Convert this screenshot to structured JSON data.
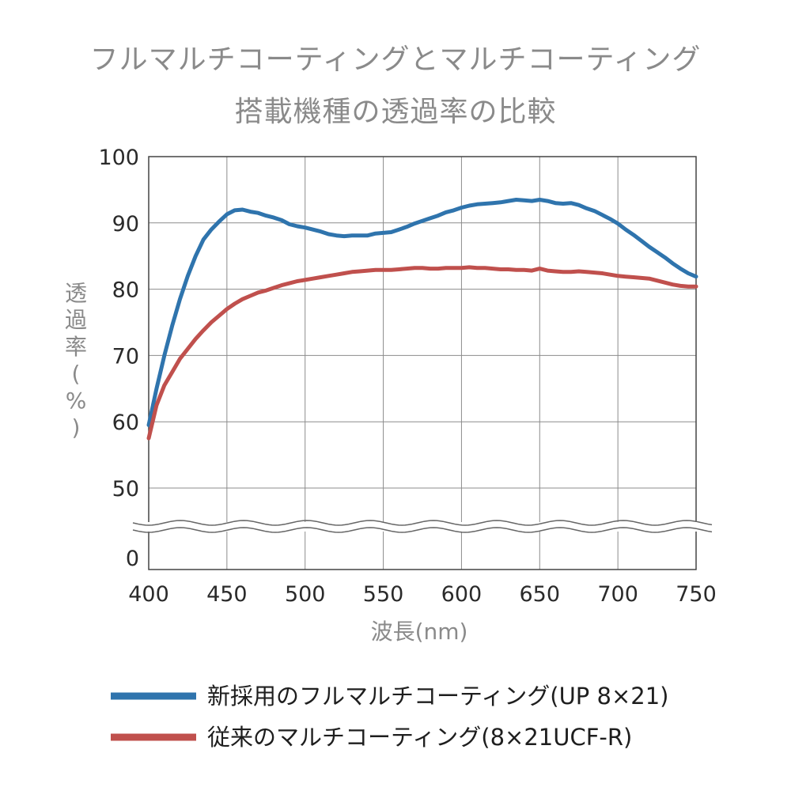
{
  "chart_data": {
    "type": "line",
    "title": "フルマルチコーティングとマルチコーティング",
    "subtitle": "搭載機種の透過率の比較",
    "xlabel": "波長(nm)",
    "ylabel": "透過率(%)",
    "xlim": [
      400,
      750
    ],
    "ylim": [
      0,
      100
    ],
    "axis_break": "between 0 and 50",
    "grid": true,
    "legend_position": "bottom",
    "x_ticks": [
      "400",
      "450",
      "500",
      "550",
      "600",
      "650",
      "700",
      "750"
    ],
    "y_ticks": [
      "100",
      "90",
      "80",
      "70",
      "60",
      "50",
      "0"
    ],
    "series": [
      {
        "name": "新採用のフルマルチコーティング(UP 8×21)",
        "color": "#2f74ad",
        "x": [
          400,
          405,
          410,
          415,
          420,
          425,
          430,
          435,
          440,
          445,
          450,
          455,
          460,
          465,
          470,
          475,
          480,
          485,
          490,
          495,
          500,
          505,
          510,
          515,
          520,
          525,
          530,
          535,
          540,
          545,
          550,
          555,
          560,
          565,
          570,
          575,
          580,
          585,
          590,
          595,
          600,
          605,
          610,
          615,
          620,
          625,
          630,
          635,
          640,
          645,
          650,
          655,
          660,
          665,
          670,
          675,
          680,
          685,
          690,
          695,
          700,
          705,
          710,
          715,
          720,
          725,
          730,
          735,
          740,
          745,
          750
        ],
        "y": [
          59.5,
          65,
          70,
          74.5,
          78.5,
          82,
          85,
          87.5,
          89,
          90.2,
          91.3,
          91.9,
          92,
          91.7,
          91.5,
          91.1,
          90.8,
          90.4,
          89.8,
          89.5,
          89.3,
          89,
          88.7,
          88.3,
          88.1,
          88.0,
          88.1,
          88.1,
          88.1,
          88.4,
          88.5,
          88.6,
          89.0,
          89.4,
          89.9,
          90.3,
          90.7,
          91.1,
          91.6,
          91.9,
          92.3,
          92.6,
          92.8,
          92.9,
          93.0,
          93.1,
          93.3,
          93.5,
          93.4,
          93.3,
          93.5,
          93.3,
          93.0,
          92.9,
          93.0,
          92.7,
          92.2,
          91.8,
          91.2,
          90.6,
          89.9,
          89.0,
          88.2,
          87.3,
          86.4,
          85.6,
          84.8,
          83.9,
          83.1,
          82.4,
          81.9
        ]
      },
      {
        "name": "従来のマルチコーティング(8×21UCF-R)",
        "color": "#c0504d",
        "x": [
          400,
          405,
          410,
          415,
          420,
          425,
          430,
          435,
          440,
          445,
          450,
          455,
          460,
          465,
          470,
          475,
          480,
          485,
          490,
          495,
          500,
          505,
          510,
          515,
          520,
          525,
          530,
          535,
          540,
          545,
          550,
          555,
          560,
          565,
          570,
          575,
          580,
          585,
          590,
          595,
          600,
          605,
          610,
          615,
          620,
          625,
          630,
          635,
          640,
          645,
          650,
          655,
          660,
          665,
          670,
          675,
          680,
          685,
          690,
          695,
          700,
          705,
          710,
          715,
          720,
          725,
          730,
          735,
          740,
          745,
          750
        ],
        "y": [
          57.5,
          62.5,
          65.5,
          67.5,
          69.5,
          71,
          72.5,
          73.8,
          75,
          76,
          77,
          77.8,
          78.5,
          79,
          79.5,
          79.8,
          80.2,
          80.6,
          80.9,
          81.2,
          81.4,
          81.6,
          81.8,
          82.0,
          82.2,
          82.4,
          82.6,
          82.7,
          82.8,
          82.9,
          82.9,
          82.9,
          83.0,
          83.1,
          83.2,
          83.2,
          83.1,
          83.1,
          83.2,
          83.2,
          83.2,
          83.3,
          83.2,
          83.2,
          83.1,
          83.0,
          83.0,
          82.9,
          82.9,
          82.8,
          83.1,
          82.8,
          82.7,
          82.6,
          82.6,
          82.7,
          82.6,
          82.5,
          82.4,
          82.2,
          82.0,
          81.9,
          81.8,
          81.7,
          81.6,
          81.3,
          81.0,
          80.7,
          80.5,
          80.4,
          80.4
        ]
      }
    ]
  }
}
